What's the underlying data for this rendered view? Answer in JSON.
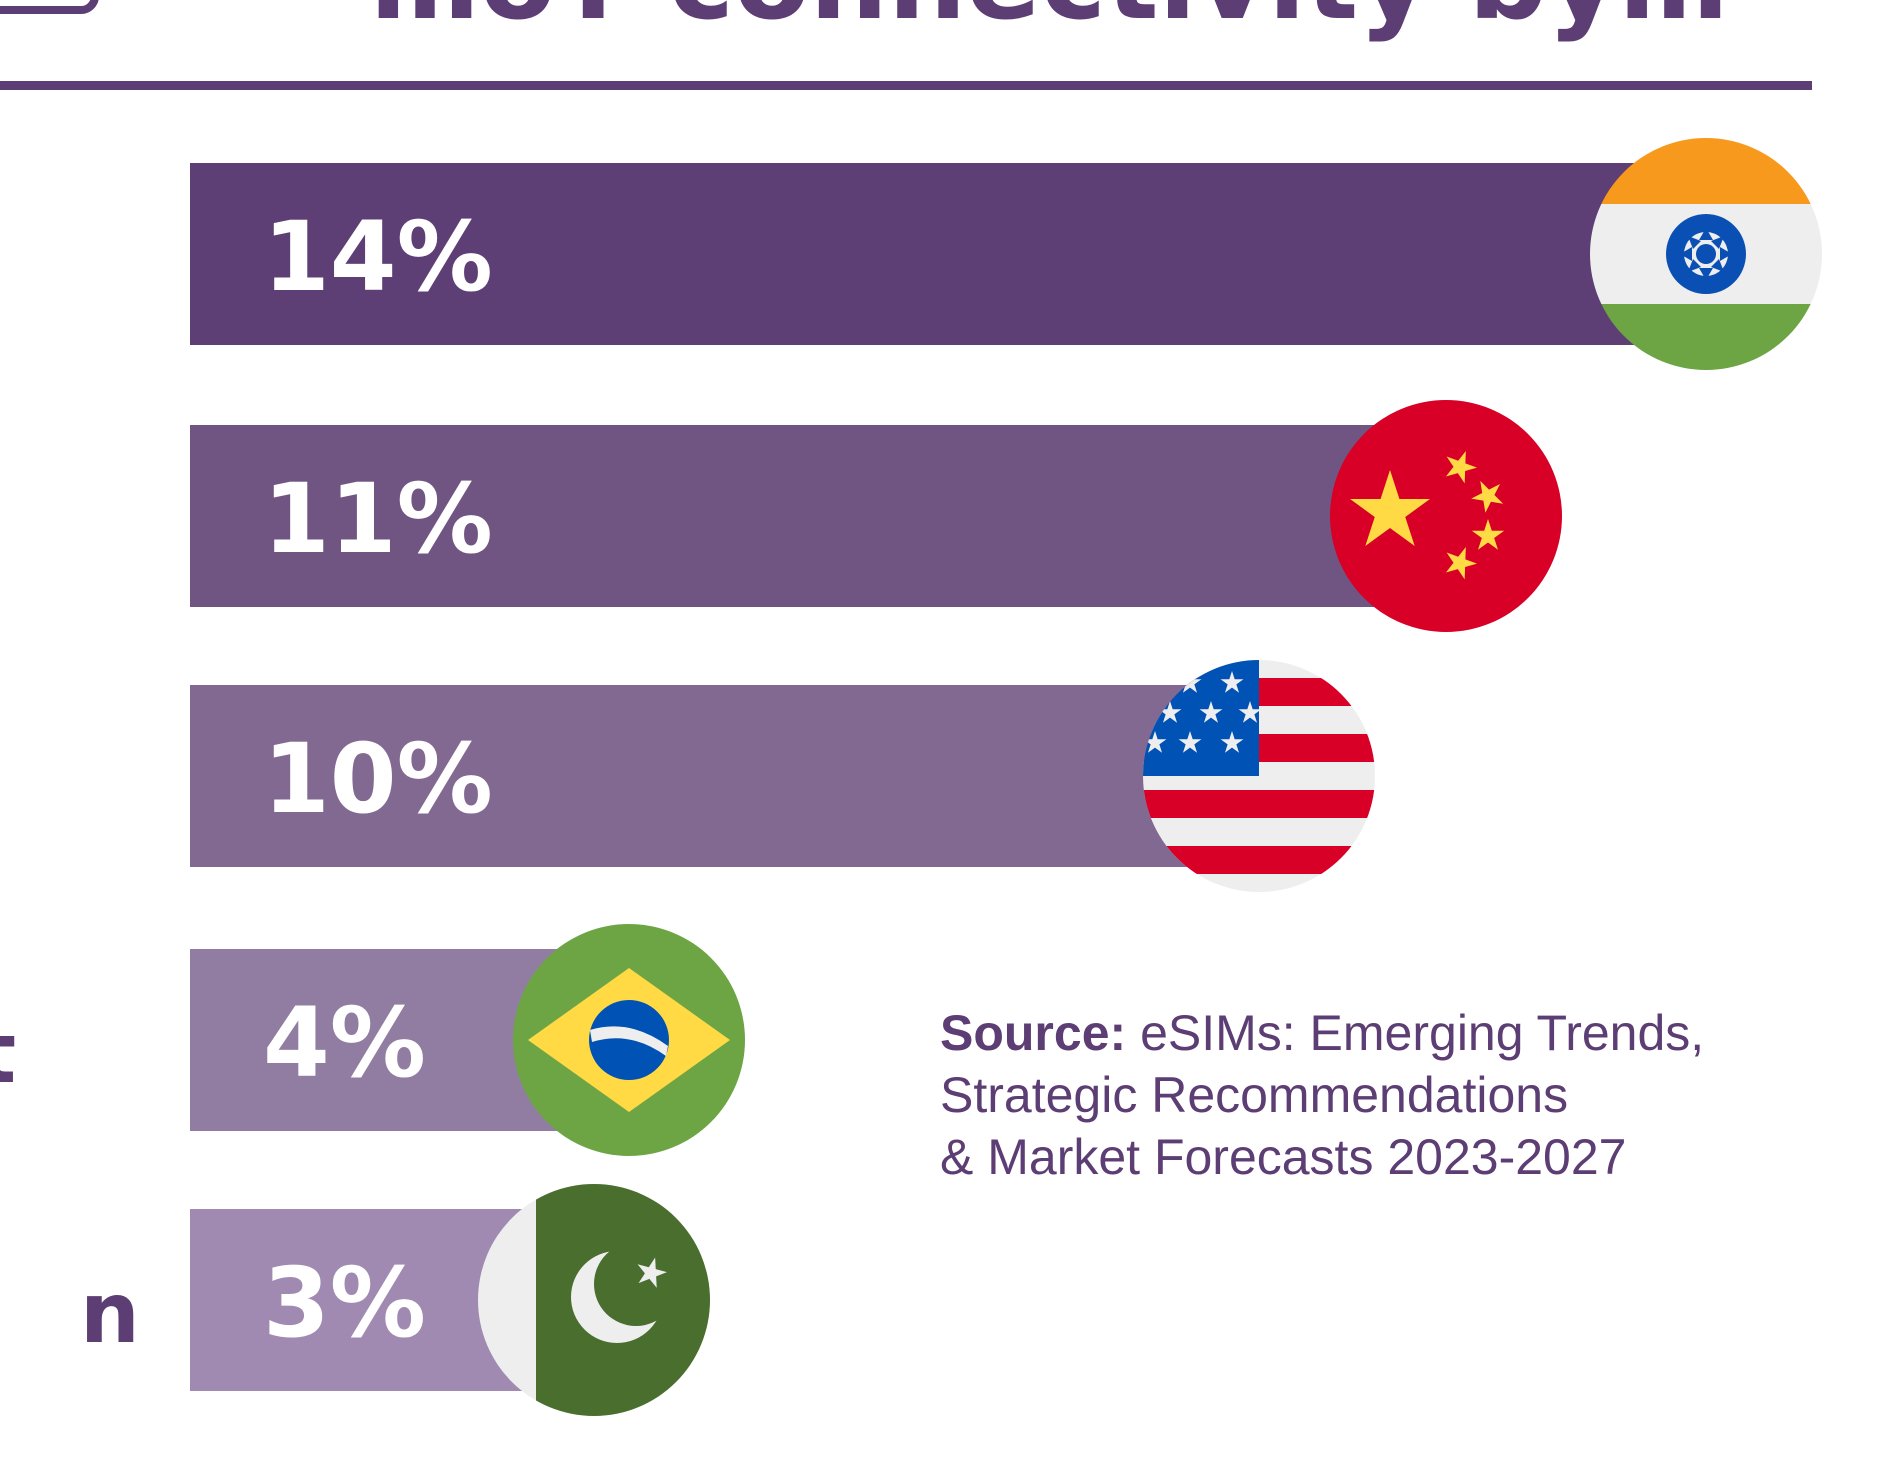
{
  "chart_data": {
    "type": "bar",
    "orientation": "horizontal",
    "title_partial": "…oT connectivity by…",
    "categories": [
      "India",
      "China",
      "United States",
      "Brazil",
      "Pakistan"
    ],
    "values": [
      14,
      11,
      10,
      4,
      3
    ],
    "labels": [
      "14%",
      "11%",
      "10%",
      "4%",
      "3%"
    ],
    "colors": [
      "#5e3f75",
      "#705583",
      "#826992",
      "#917da2",
      "#a08ab2"
    ],
    "axis_label_partial": [
      "n"
    ],
    "xlim": [
      0,
      14
    ]
  },
  "source": {
    "label": "Source:",
    "line1": "eSIMs: Emerging Trends,",
    "line2": "Strategic Recommendations",
    "line3": "& Market Forecasts 2023-2027"
  }
}
